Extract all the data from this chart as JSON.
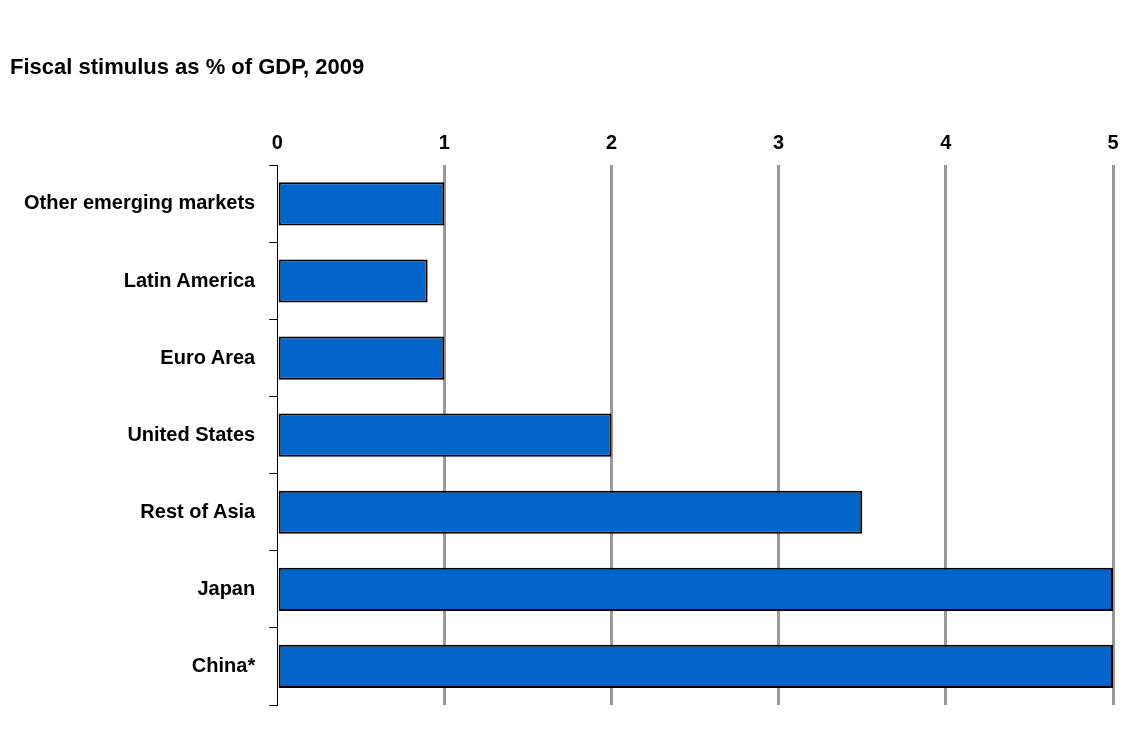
{
  "chart_data": {
    "type": "bar",
    "orientation": "horizontal",
    "title": "Fiscal stimulus as % of GDP, 2009",
    "categories": [
      "Other emerging markets",
      "Latin America",
      "Euro Area",
      "United States",
      "Rest of Asia",
      "Japan",
      "China*"
    ],
    "values": [
      1,
      0.9,
      1,
      2,
      3.5,
      5,
      5
    ],
    "color": "#0066cc",
    "xlim": [
      0,
      5
    ],
    "xticks": [
      0,
      1,
      2,
      3,
      4,
      5
    ],
    "grid": "x"
  }
}
